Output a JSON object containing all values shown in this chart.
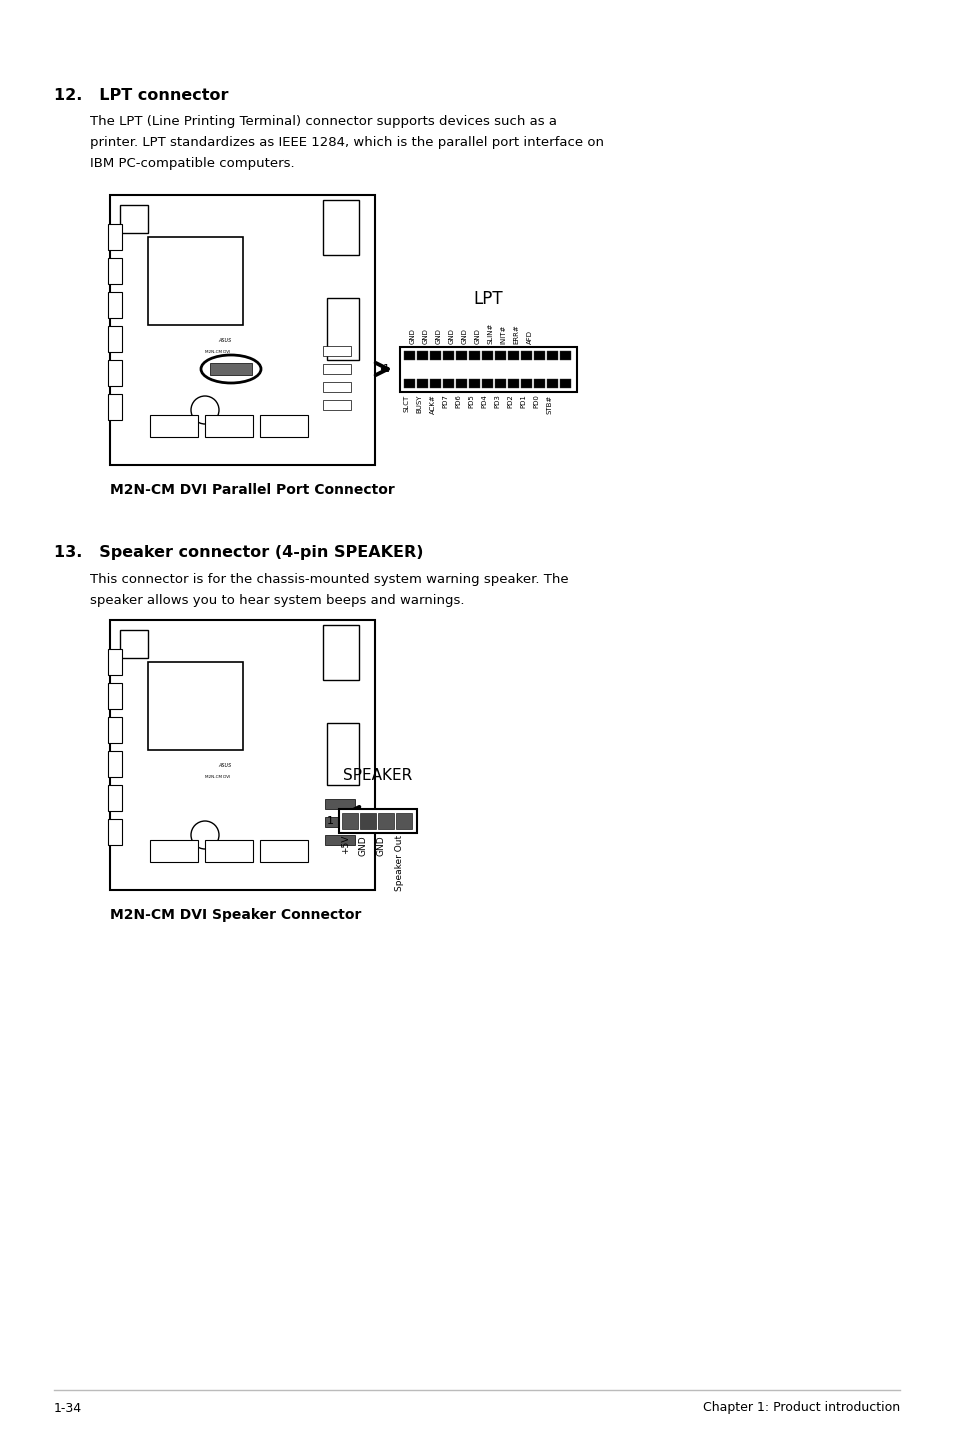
{
  "bg_color": "#ffffff",
  "section12_heading": "12.   LPT connector",
  "section12_body1": "The LPT (Line Printing Terminal) connector supports devices such as a",
  "section12_body2": "printer. LPT standardizes as IEEE 1284, which is the parallel port interface on",
  "section12_body3": "IBM PC-compatible computers.",
  "section12_caption": "M2N-CM DVI Parallel Port Connector",
  "lpt_label": "LPT",
  "lpt_top_pins": [
    "GND",
    "GND",
    "GND",
    "GND",
    "GND",
    "GND",
    "SLIN#",
    "INIT#",
    "ERR#",
    "AFD"
  ],
  "lpt_bot_pins": [
    "SLCT",
    "BUSY",
    "ACK#",
    "PD7",
    "PD6",
    "PD5",
    "PD4",
    "PD3",
    "PD2",
    "PD1",
    "PD0",
    "STB#"
  ],
  "section13_heading": "13.   Speaker connector (4-pin SPEAKER)",
  "section13_body1": "This connector is for the chassis-mounted system warning speaker. The",
  "section13_body2": "speaker allows you to hear system beeps and warnings.",
  "section13_caption": "M2N-CM DVI Speaker Connector",
  "speaker_label": "SPEAKER",
  "speaker_pins": [
    "+5V",
    "GND",
    "GND",
    "Speaker Out"
  ],
  "footer_left": "1-34",
  "footer_right": "Chapter 1: Product introduction"
}
